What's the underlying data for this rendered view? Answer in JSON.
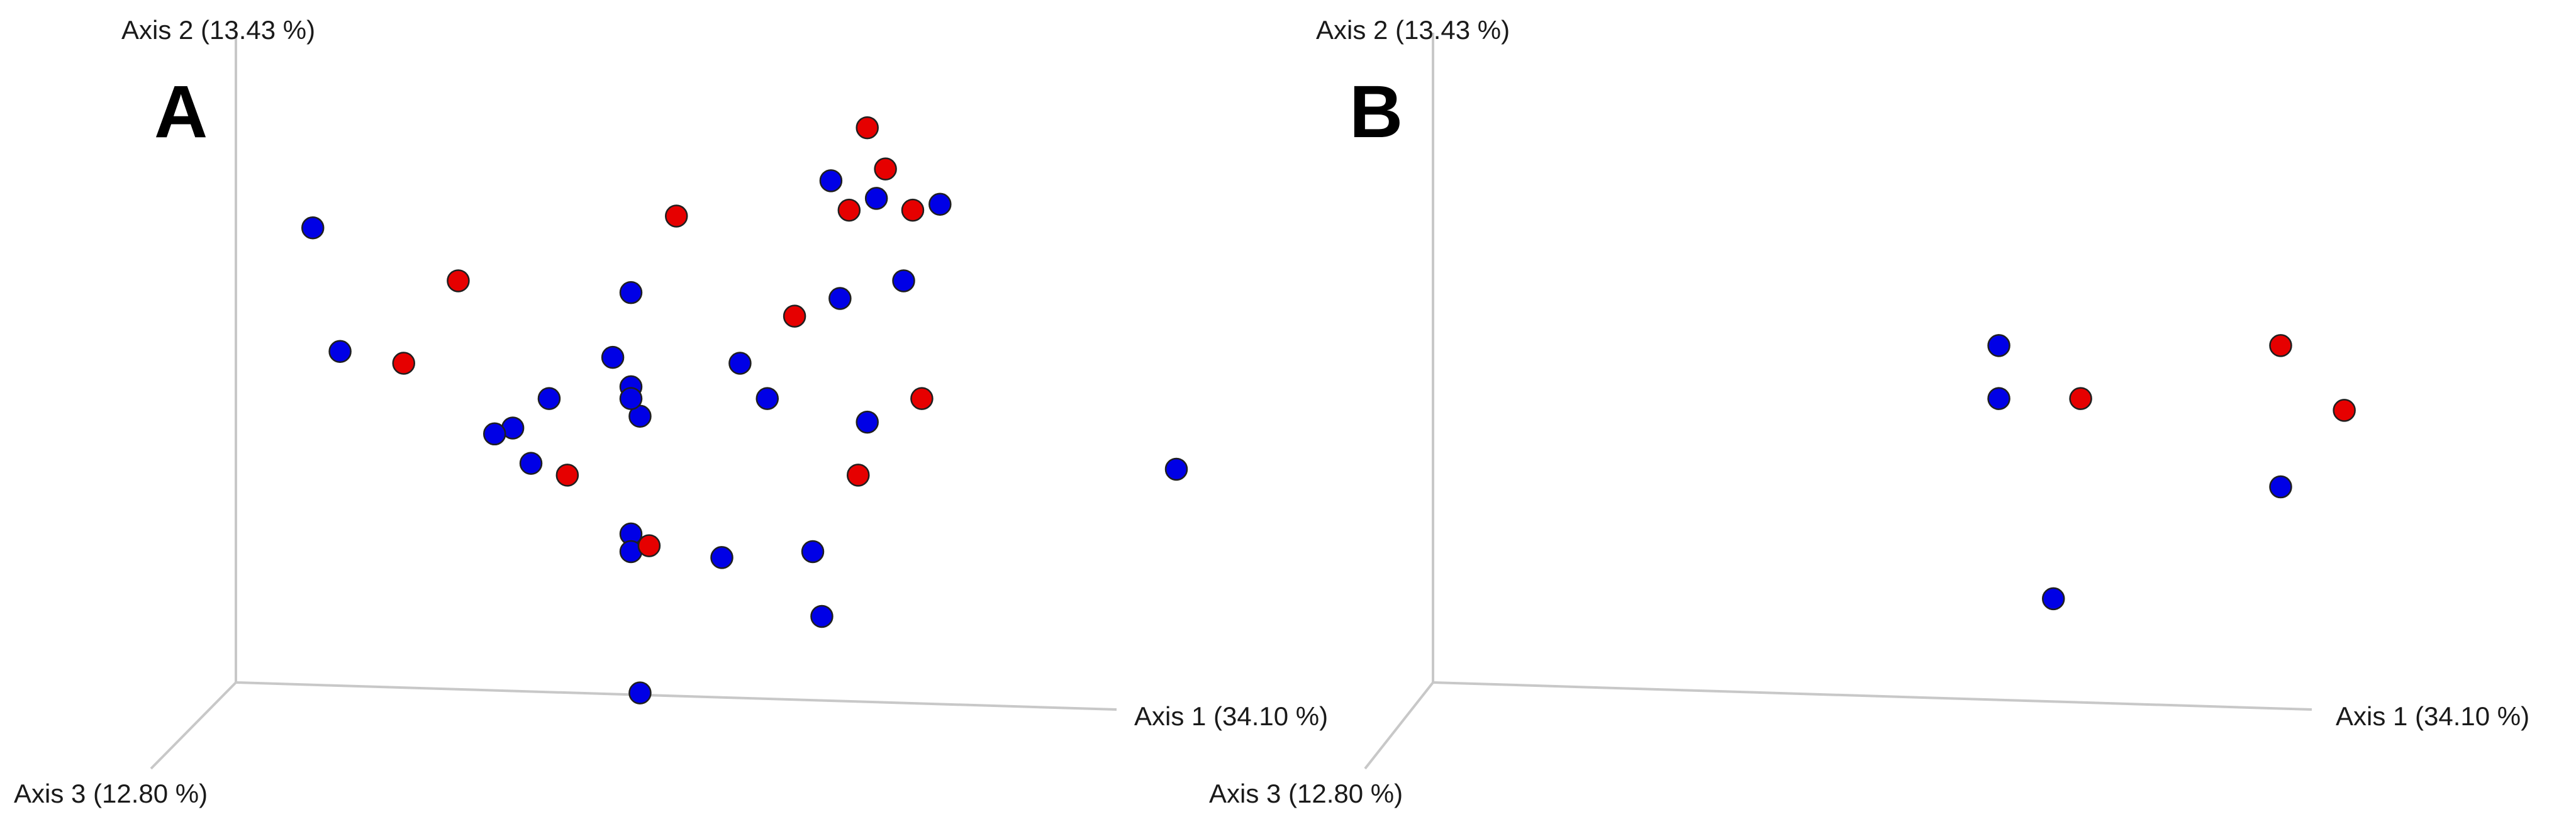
{
  "chart_data": [
    {
      "type": "scatter",
      "panel": "A",
      "axes": {
        "x": "Axis 1 (34.10 %)",
        "y": "Axis 2 (13.43 %)",
        "z": "Axis 3 (12.80 %)"
      },
      "grid": false,
      "colors": {
        "group1": "#0000e6",
        "group2": "#e60000"
      },
      "series": [
        {
          "color": "#0000e6",
          "points": [
            [
              0.05,
              0.8
            ],
            [
              0.08,
              0.59
            ],
            [
              0.31,
              0.51
            ],
            [
              0.27,
              0.46
            ],
            [
              0.4,
              0.69
            ],
            [
              0.38,
              0.58
            ],
            [
              0.4,
              0.53
            ],
            [
              0.41,
              0.48
            ],
            [
              0.4,
              0.51
            ],
            [
              0.29,
              0.4
            ],
            [
              0.25,
              0.45
            ],
            [
              0.52,
              0.57
            ],
            [
              0.55,
              0.51
            ],
            [
              0.62,
              0.88
            ],
            [
              0.63,
              0.68
            ],
            [
              0.67,
              0.85
            ],
            [
              0.7,
              0.71
            ],
            [
              0.74,
              0.84
            ],
            [
              0.66,
              0.47
            ],
            [
              0.4,
              0.28
            ],
            [
              0.4,
              0.25
            ],
            [
              0.5,
              0.24
            ],
            [
              0.6,
              0.25
            ],
            [
              0.61,
              0.14
            ],
            [
              0.41,
              0.01
            ],
            [
              1.0,
              0.39
            ]
          ]
        },
        {
          "color": "#e60000",
          "points": [
            [
              0.21,
              0.71
            ],
            [
              0.15,
              0.57
            ],
            [
              0.45,
              0.82
            ],
            [
              0.58,
              0.65
            ],
            [
              0.64,
              0.83
            ],
            [
              0.66,
              0.97
            ],
            [
              0.68,
              0.9
            ],
            [
              0.71,
              0.83
            ],
            [
              0.72,
              0.51
            ],
            [
              0.65,
              0.38
            ],
            [
              0.33,
              0.38
            ],
            [
              0.42,
              0.26
            ]
          ]
        }
      ]
    },
    {
      "type": "scatter",
      "panel": "B",
      "axes": {
        "x": "Axis 1 (34.10 %)",
        "y": "Axis 2 (13.43 %)",
        "z": "Axis 3 (12.80 %)"
      },
      "grid": false,
      "colors": {
        "group1": "#0000e6",
        "group2": "#e60000"
      },
      "series": [
        {
          "color": "#0000e6",
          "points": [
            [
              0.59,
              0.6
            ],
            [
              0.59,
              0.51
            ],
            [
              0.65,
              0.17
            ],
            [
              0.9,
              0.36
            ]
          ]
        },
        {
          "color": "#e60000",
          "points": [
            [
              0.68,
              0.51
            ],
            [
              0.9,
              0.6
            ],
            [
              0.97,
              0.49
            ]
          ]
        }
      ]
    }
  ]
}
